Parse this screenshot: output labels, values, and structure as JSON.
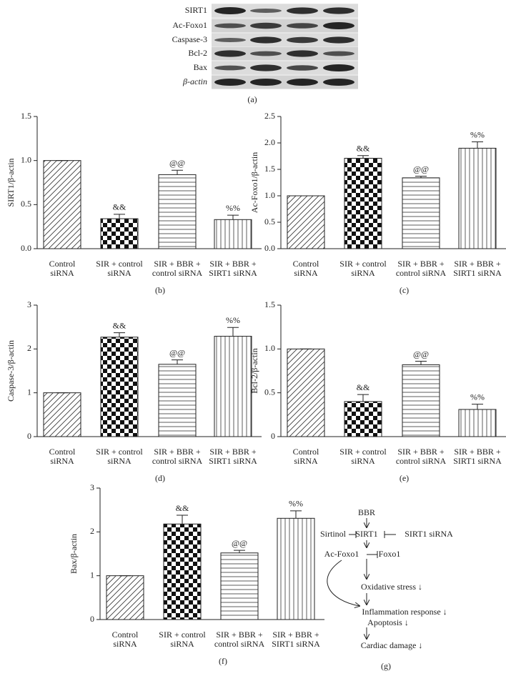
{
  "blot": {
    "labels": [
      "SIRT1",
      "Ac-Foxo1",
      "Caspase-3",
      "Bcl-2",
      "Bax",
      "β-actin"
    ],
    "panel_label": "(a)"
  },
  "chart_data": [
    {
      "type": "bar",
      "ylabel": "SIRT1/β-actin",
      "panel_label": "(b)",
      "categories": [
        [
          "Control",
          "siRNA"
        ],
        [
          "SIR + control",
          "siRNA"
        ],
        [
          "SIR + BBR +",
          "control siRNA"
        ],
        [
          "SIR + BBR +",
          "SIRT1 siRNA"
        ]
      ],
      "values": [
        1.0,
        0.34,
        0.84,
        0.33
      ],
      "errors": [
        0,
        0.05,
        0.05,
        0.05
      ],
      "annotations": [
        null,
        "&&",
        "@@",
        "%%"
      ],
      "patterns": [
        "diagonal",
        "checker",
        "horizontal",
        "vertical"
      ],
      "ylim": [
        0,
        1.5
      ],
      "yticks": [
        {
          "value": 0,
          "label": "0.0"
        },
        0.5,
        {
          "value": 1,
          "label": "1.0"
        },
        1.5
      ]
    },
    {
      "type": "bar",
      "ylabel": "Ac-Foxo1/β-actin",
      "panel_label": "(c)",
      "categories": [
        [
          "Control",
          "siRNA"
        ],
        [
          "SIR + control",
          "siRNA"
        ],
        [
          "SIR + BBR +",
          "control siRNA"
        ],
        [
          "SIR + BBR +",
          "SIRT1 siRNA"
        ]
      ],
      "values": [
        1.0,
        1.71,
        1.34,
        1.9
      ],
      "errors": [
        0,
        0.05,
        0.03,
        0.12
      ],
      "annotations": [
        null,
        "&&",
        "@@",
        "%%"
      ],
      "patterns": [
        "diagonal",
        "checker",
        "horizontal",
        "vertical"
      ],
      "ylim": [
        0,
        2.5
      ],
      "yticks": [
        {
          "value": 0,
          "label": "0.0"
        },
        0.5,
        {
          "value": 1,
          "label": "1.0"
        },
        1.5,
        {
          "value": 2,
          "label": "2.0"
        },
        2.5
      ]
    },
    {
      "type": "bar",
      "ylabel": "Caspase-3/β-actin",
      "panel_label": "(d)",
      "categories": [
        [
          "Control",
          "siRNA"
        ],
        [
          "SIR + control",
          "siRNA"
        ],
        [
          "SIR + BBR +",
          "control siRNA"
        ],
        [
          "SIR + BBR +",
          "SIRT1 siRNA"
        ]
      ],
      "values": [
        1.0,
        2.27,
        1.65,
        2.29
      ],
      "errors": [
        0,
        0.1,
        0.1,
        0.2
      ],
      "annotations": [
        null,
        "&&",
        "@@",
        "%%"
      ],
      "patterns": [
        "diagonal",
        "checker",
        "horizontal",
        "vertical"
      ],
      "ylim": [
        0,
        3
      ],
      "yticks": [
        0,
        1,
        2,
        3
      ]
    },
    {
      "type": "bar",
      "ylabel": "Bcl-2/β-actin",
      "panel_label": "(e)",
      "categories": [
        [
          "Control",
          "siRNA"
        ],
        [
          "SIR + control",
          "siRNA"
        ],
        [
          "SIR + BBR +",
          "control siRNA"
        ],
        [
          "SIR + BBR +",
          "SIRT1 siRNA"
        ]
      ],
      "values": [
        1.0,
        0.4,
        0.82,
        0.31
      ],
      "errors": [
        0,
        0.08,
        0.04,
        0.06
      ],
      "annotations": [
        null,
        "&&",
        "@@",
        "%%"
      ],
      "patterns": [
        "diagonal",
        "checker",
        "horizontal",
        "vertical"
      ],
      "ylim": [
        0,
        1.5
      ],
      "yticks": [
        0,
        0.5,
        {
          "value": 1,
          "label": "1.0"
        },
        1.5
      ]
    },
    {
      "type": "bar",
      "ylabel": "Bax/β-actin",
      "panel_label": "(f)",
      "categories": [
        [
          "Control",
          "siRNA"
        ],
        [
          "SIR + control",
          "siRNA"
        ],
        [
          "SIR + BBR +",
          "control siRNA"
        ],
        [
          "SIR + BBR +",
          "SIRT1 siRNA"
        ]
      ],
      "values": [
        1.0,
        2.18,
        1.52,
        2.31
      ],
      "errors": [
        0,
        0.2,
        0.06,
        0.17
      ],
      "annotations": [
        null,
        "&&",
        "@@",
        "%%"
      ],
      "patterns": [
        "diagonal",
        "checker",
        "horizontal",
        "vertical"
      ],
      "ylim": [
        0,
        3
      ],
      "yticks": [
        0,
        1,
        2,
        3
      ]
    }
  ],
  "diagram": {
    "panel_label": "(g)",
    "nodes": [
      "BBR",
      "SIRT1",
      "Sirtinol",
      "SIRT1 siRNA",
      "Ac-Foxo1",
      "Foxo1",
      "Oxidative stress ↓",
      "Inflammation response ↓",
      "Apoptosis ↓",
      "Cardiac damage ↓"
    ]
  }
}
